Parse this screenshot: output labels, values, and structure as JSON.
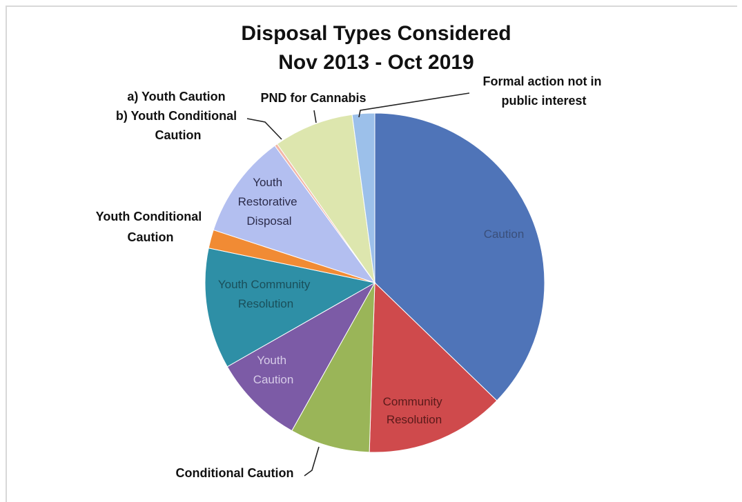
{
  "chart_data": {
    "type": "pie",
    "title": "Disposal Types Considered",
    "subtitle": "Nov 2013 - Oct 2019",
    "slices": [
      {
        "label": "Caution",
        "value": 40.1,
        "color": "#4f74b8"
      },
      {
        "label": "Community Resolution",
        "value": 14.3,
        "color": "#cf4a4c"
      },
      {
        "label": "Conditional Caution",
        "value": 8.2,
        "color": "#9ab558"
      },
      {
        "label": "Youth Caution",
        "value": 9.3,
        "color": "#7c5ba6"
      },
      {
        "label": "Youth Community Resolution",
        "value": 12.4,
        "color": "#2e8fa6"
      },
      {
        "label": "Youth Conditional Caution",
        "value": 1.9,
        "color": "#f18b34"
      },
      {
        "label": "Youth Restorative Disposal",
        "value": 10.7,
        "color": "#b3bff0"
      },
      {
        "label": "a) Youth Caution b) Youth Conditional Caution",
        "value": 0.3,
        "color": "#f2b8a8"
      },
      {
        "label": "PND for Cannabis",
        "value": 8.2,
        "color": "#dde6ae"
      },
      {
        "label": "Formal action not in public interest",
        "value": 2.3,
        "color": "#9cc0ea"
      }
    ],
    "labels": {
      "caution": "Caution",
      "community_resolution": [
        "Community",
        "Resolution"
      ],
      "conditional_caution": "Conditional Caution",
      "youth_caution": [
        "Youth",
        "Caution"
      ],
      "youth_community_resolution": [
        "Youth Community",
        "Resolution"
      ],
      "youth_conditional_caution": [
        "Youth Conditional",
        "Caution"
      ],
      "youth_restorative_disposal": [
        "Youth",
        "Restorative",
        "Disposal"
      ],
      "ab_youth": [
        "a) Youth Caution",
        "b) Youth Conditional",
        "Caution"
      ],
      "pnd_cannabis": "PND for Cannabis",
      "formal_action": [
        "Formal action not in",
        "public interest"
      ]
    }
  }
}
